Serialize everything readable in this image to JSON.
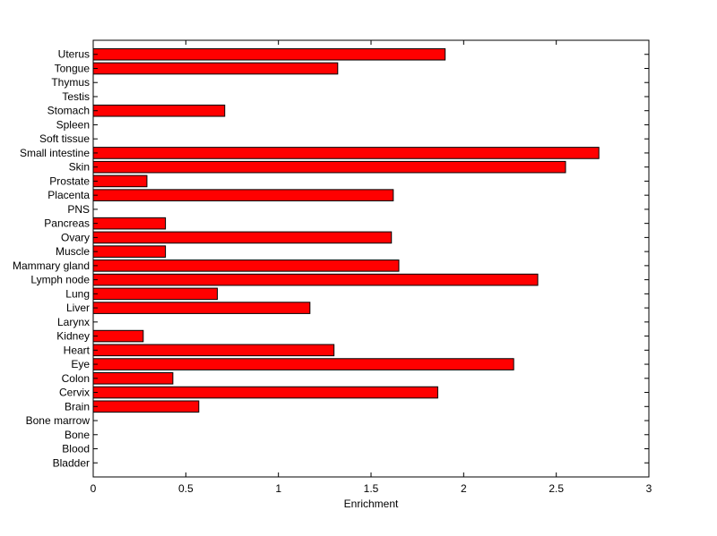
{
  "chart_data": {
    "type": "bar",
    "orientation": "horizontal",
    "categories": [
      "Bladder",
      "Blood",
      "Bone",
      "Bone marrow",
      "Brain",
      "Cervix",
      "Colon",
      "Eye",
      "Heart",
      "Kidney",
      "Larynx",
      "Liver",
      "Lung",
      "Lymph node",
      "Mammary gland",
      "Muscle",
      "Ovary",
      "Pancreas",
      "PNS",
      "Placenta",
      "Prostate",
      "Skin",
      "Small intestine",
      "Soft tissue",
      "Spleen",
      "Stomach",
      "Testis",
      "Thymus",
      "Tongue",
      "Uterus"
    ],
    "values": [
      0,
      0,
      0,
      0,
      0.57,
      1.86,
      0.43,
      2.27,
      1.3,
      0.27,
      0,
      1.17,
      0.67,
      2.4,
      1.65,
      0.39,
      1.61,
      0.39,
      0,
      1.62,
      0.29,
      2.55,
      2.73,
      0,
      0,
      0.71,
      0,
      0,
      1.32,
      1.9
    ],
    "xlabel": "Enrichment",
    "ylabel": "",
    "title": "",
    "xlim": [
      0,
      3
    ],
    "xticks": [
      "0",
      "0.5",
      "1",
      "1.5",
      "2",
      "2.5",
      "3"
    ],
    "grid": false,
    "bar_color": "#ff0000",
    "bar_edge_color": "#000000"
  }
}
